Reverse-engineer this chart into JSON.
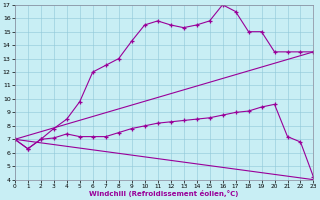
{
  "bg_color": "#c8eef4",
  "line_color": "#990099",
  "xlim": [
    0,
    23
  ],
  "ylim": [
    4,
    17
  ],
  "xticks": [
    0,
    1,
    2,
    3,
    4,
    5,
    6,
    7,
    8,
    9,
    10,
    11,
    12,
    13,
    14,
    15,
    16,
    17,
    18,
    19,
    20,
    21,
    22,
    23
  ],
  "yticks": [
    4,
    5,
    6,
    7,
    8,
    9,
    10,
    11,
    12,
    13,
    14,
    15,
    16,
    17
  ],
  "xlabel": "Windchill (Refroidissement éolien,°C)",
  "line1_x": [
    0,
    1,
    2,
    3,
    4,
    5,
    6,
    7,
    8,
    9,
    10,
    11,
    12,
    13,
    14,
    15,
    16,
    17,
    18,
    19,
    20,
    21,
    22,
    23
  ],
  "line1_y": [
    7.0,
    6.3,
    7.0,
    7.8,
    8.5,
    9.8,
    12.0,
    12.5,
    13.0,
    14.3,
    15.5,
    15.8,
    15.5,
    15.3,
    15.5,
    15.8,
    17.0,
    16.5,
    15.0,
    15.0,
    13.5,
    13.5,
    13.5,
    13.5
  ],
  "line2_x": [
    0,
    23
  ],
  "line2_y": [
    7.0,
    13.5
  ],
  "line3_x": [
    0,
    1,
    2,
    3,
    4,
    5,
    6,
    7,
    8,
    9,
    10,
    11,
    12,
    13,
    14,
    15,
    16,
    17,
    18,
    19,
    20,
    21,
    22,
    23
  ],
  "line3_y": [
    7.0,
    6.3,
    7.0,
    7.1,
    7.4,
    7.2,
    7.2,
    7.2,
    7.5,
    7.8,
    8.0,
    8.2,
    8.3,
    8.4,
    8.5,
    8.6,
    8.8,
    9.0,
    9.1,
    9.4,
    9.6,
    7.2,
    6.8,
    4.2
  ],
  "line4_x": [
    0,
    23
  ],
  "line4_y": [
    7.0,
    4.0
  ]
}
